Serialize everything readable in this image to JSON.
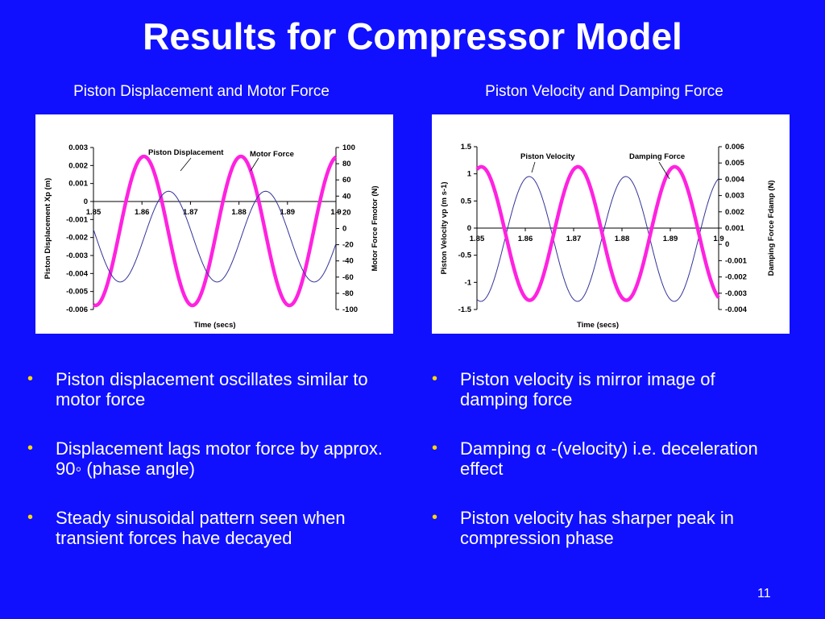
{
  "slide": {
    "title": "Results for Compressor Model",
    "page_number": "11"
  },
  "left": {
    "subtitle": "Piston Displacement and Motor Force",
    "bullets": [
      "Piston displacement oscillates similar to motor force",
      "Displacement lags motor force by approx. 90◦ (phase angle)",
      "Steady sinusoidal pattern seen when transient forces have decayed"
    ]
  },
  "right": {
    "subtitle": "Piston Velocity and Damping Force",
    "bullets": [
      "Piston velocity is mirror image of damping force",
      "Damping α -(velocity) i.e. deceleration effect",
      "Piston velocity has sharper peak in compression phase"
    ]
  },
  "bullet_symbol": "•",
  "colors": {
    "background": "#1010ff",
    "bullet": "#ffd700",
    "thick_series": "#ff22e0",
    "thin_series": "#33339a"
  },
  "chart_data": [
    {
      "type": "line",
      "xlabel": "Time (secs)",
      "ylabel": "Piston Displacement Xp (m)",
      "y2label": "Motor Force Fmotor (N)",
      "xlim": [
        1.85,
        1.9
      ],
      "ylim": [
        -0.006,
        0.003
      ],
      "y2lim": [
        -100,
        100
      ],
      "x_ticks": [
        "1.85",
        "1.86",
        "1.87",
        "1.88",
        "1.89",
        "1.9"
      ],
      "y_ticks": [
        "0.003",
        "0.002",
        "0.001",
        "0",
        "-0.001",
        "-0.002",
        "-0.003",
        "-0.004",
        "-0.005",
        "-0.006"
      ],
      "y2_ticks": [
        "100",
        "80",
        "60",
        "40",
        "20",
        "0",
        "-20",
        "-40",
        "-60",
        "-80",
        "-100"
      ],
      "series": [
        {
          "name": "Piston Displacement",
          "axis": "y2",
          "style": "thick",
          "amplitude": 92,
          "offset": -3,
          "period": 0.02,
          "peak_at": 1.8604
        },
        {
          "name": "Motor Force",
          "axis": "y2",
          "style": "thin",
          "amplitude": 56,
          "offset": -10,
          "period": 0.02,
          "peak_at": 1.8655
        }
      ]
    },
    {
      "type": "line",
      "xlabel": "Time (secs)",
      "ylabel": "Piston Velocity vp (m s-1)",
      "y2label": "Damping Force Fdamp (N)",
      "xlim": [
        1.85,
        1.9
      ],
      "ylim": [
        -1.5,
        1.5
      ],
      "y2lim": [
        -0.004,
        0.006
      ],
      "x_ticks": [
        "1.85",
        "1.86",
        "1.87",
        "1.88",
        "1.89",
        "1.9"
      ],
      "y_ticks": [
        "1.5",
        "1",
        "0.5",
        "0",
        "-0.5",
        "-1",
        "-1.5"
      ],
      "y2_ticks": [
        "0.006",
        "0.005",
        "0.004",
        "0.003",
        "0.002",
        "0.001",
        "0",
        "-0.001",
        "-0.002",
        "-0.003",
        "-0.004"
      ],
      "series": [
        {
          "name": "Piston Velocity",
          "axis": "y",
          "style": "thin",
          "amplitude": 1.15,
          "offset": -0.2,
          "period": 0.02,
          "peak_at": 1.8608
        },
        {
          "name": "Damping Force",
          "axis": "y",
          "style": "thick",
          "amplitude": 1.23,
          "offset": -0.1,
          "period": 0.02,
          "peak_at": 1.8509
        }
      ]
    }
  ]
}
